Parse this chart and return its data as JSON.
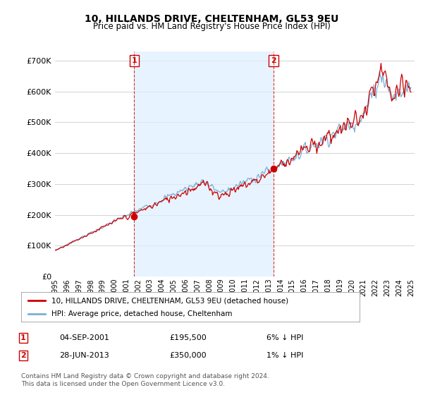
{
  "title": "10, HILLANDS DRIVE, CHELTENHAM, GL53 9EU",
  "subtitle": "Price paid vs. HM Land Registry's House Price Index (HPI)",
  "legend_label_red": "10, HILLANDS DRIVE, CHELTENHAM, GL53 9EU (detached house)",
  "legend_label_blue": "HPI: Average price, detached house, Cheltenham",
  "transaction1_label": "1",
  "transaction1_date": "04-SEP-2001",
  "transaction1_price": "£195,500",
  "transaction1_hpi": "6% ↓ HPI",
  "transaction2_label": "2",
  "transaction2_date": "28-JUN-2013",
  "transaction2_price": "£350,000",
  "transaction2_hpi": "1% ↓ HPI",
  "footer": "Contains HM Land Registry data © Crown copyright and database right 2024.\nThis data is licensed under the Open Government Licence v3.0.",
  "ylim": [
    0,
    730000
  ],
  "yticks": [
    0,
    100000,
    200000,
    300000,
    400000,
    500000,
    600000,
    700000
  ],
  "ytick_labels": [
    "£0",
    "£100K",
    "£200K",
    "£300K",
    "£400K",
    "£500K",
    "£600K",
    "£700K"
  ],
  "hpi_color": "#7aafd4",
  "price_color": "#cc0000",
  "shade_color": "#ddeeff",
  "background_color": "#ffffff",
  "grid_color": "#cccccc",
  "t1_x": 2001.67,
  "t1_y": 195500,
  "t2_x": 2013.42,
  "t2_y": 350000,
  "xlim_left": 1995.0,
  "xlim_right": 2025.3
}
